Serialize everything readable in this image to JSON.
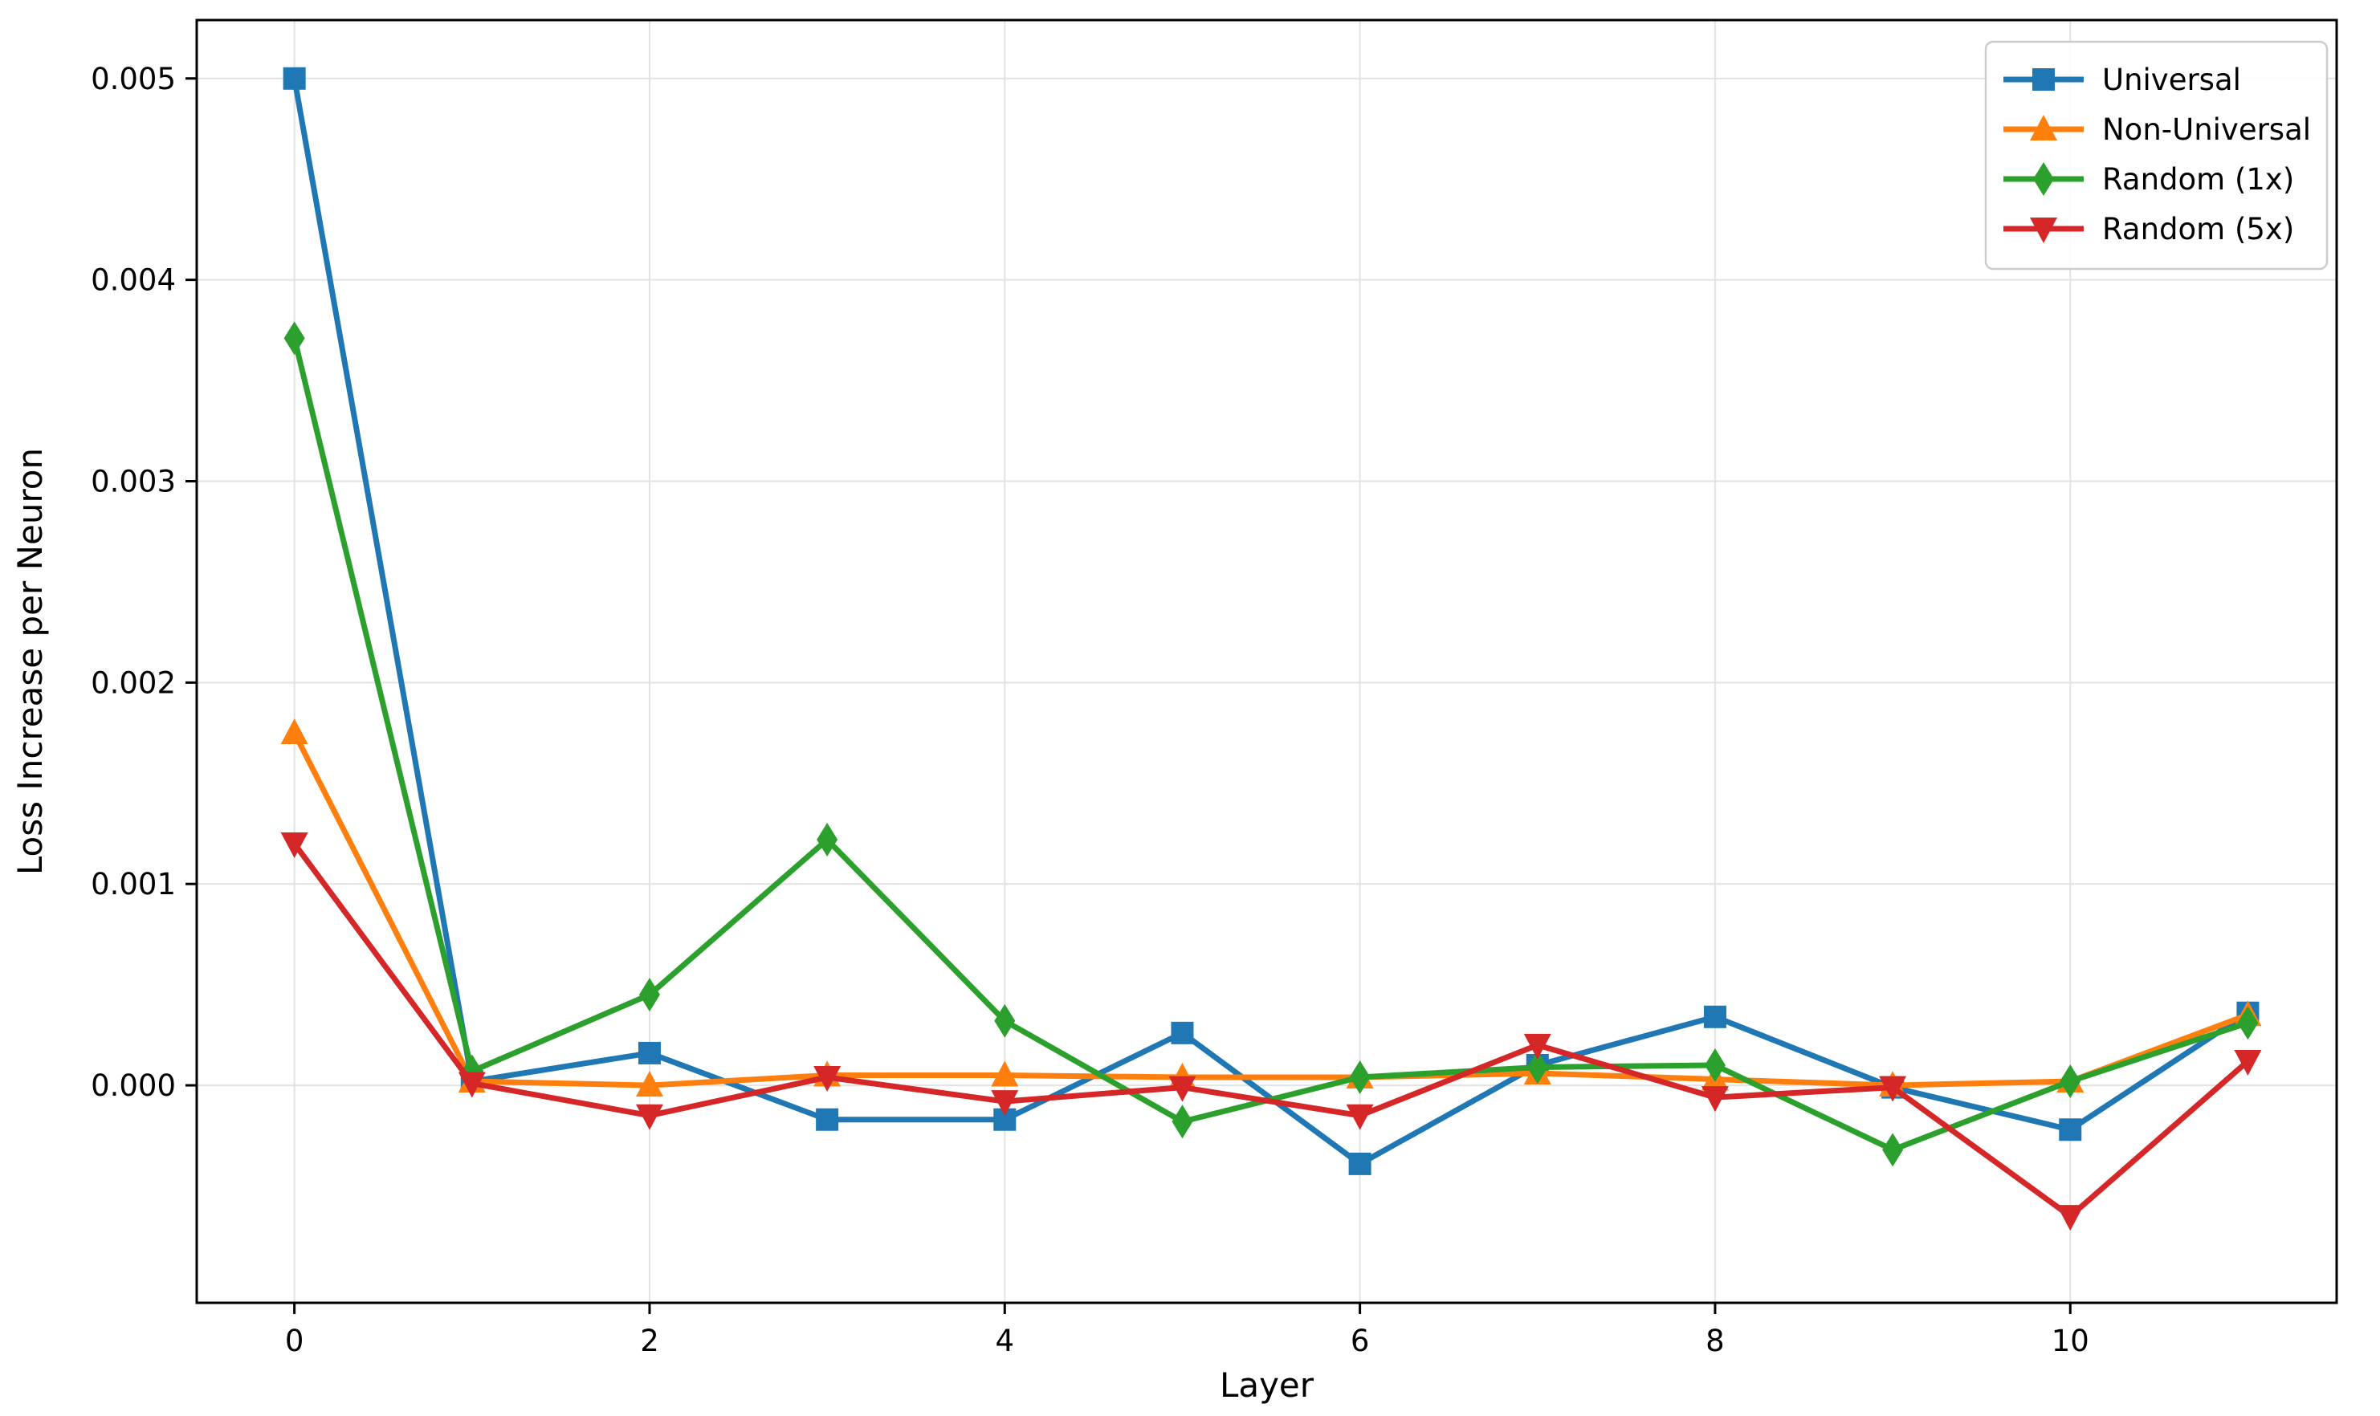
{
  "chart_data": {
    "type": "line",
    "x": [
      0,
      1,
      2,
      3,
      4,
      5,
      6,
      7,
      8,
      9,
      10,
      11
    ],
    "series": [
      {
        "name": "Universal",
        "color": "#1f77b4",
        "marker": "square",
        "values": [
          0.005,
          2e-05,
          0.00016,
          -0.00017,
          -0.00017,
          0.00026,
          -0.00039,
          0.0001,
          0.00034,
          -1e-05,
          -0.00022,
          0.00036
        ]
      },
      {
        "name": "Non-Universal",
        "color": "#ff7f0e",
        "marker": "triangle-up",
        "values": [
          0.00175,
          2e-05,
          0.0,
          5e-05,
          5e-05,
          4e-05,
          4e-05,
          6e-05,
          3e-05,
          0.0,
          2e-05,
          0.00035
        ]
      },
      {
        "name": "Random (1x)",
        "color": "#2ca02c",
        "marker": "diamond",
        "values": [
          0.00371,
          7e-05,
          0.00045,
          0.00122,
          0.00032,
          -0.00018,
          4e-05,
          9e-05,
          0.0001,
          -0.00032,
          2e-05,
          0.00031
        ]
      },
      {
        "name": "Random (5x)",
        "color": "#d62728",
        "marker": "triangle-down",
        "values": [
          0.0012,
          1e-05,
          -0.00015,
          4e-05,
          -8e-05,
          -1e-05,
          -0.00015,
          0.0002,
          -6e-05,
          -1e-05,
          -0.00065,
          0.00012
        ]
      }
    ],
    "xlabel": "Layer",
    "ylabel": "Loss Increase per Neuron",
    "xlim": [
      -0.55,
      11.5
    ],
    "ylim": [
      -0.00108,
      0.00529
    ],
    "xticks": {
      "values": [
        0,
        2,
        4,
        6,
        8,
        10
      ],
      "labels": [
        "0",
        "2",
        "4",
        "6",
        "8",
        "10"
      ]
    },
    "yticks": {
      "values": [
        0.0,
        0.001,
        0.002,
        0.003,
        0.004,
        0.005
      ],
      "labels": [
        "0.000",
        "0.001",
        "0.002",
        "0.003",
        "0.004",
        "0.005"
      ]
    },
    "grid": true,
    "legend": {
      "position": "upper-right",
      "entries": [
        "Universal",
        "Non-Universal",
        "Random (1x)",
        "Random (5x)"
      ]
    },
    "colors": {
      "grid": "#e2e2e2",
      "spine": "#000000",
      "background": "#ffffff",
      "legend_border": "#cccccc"
    }
  }
}
